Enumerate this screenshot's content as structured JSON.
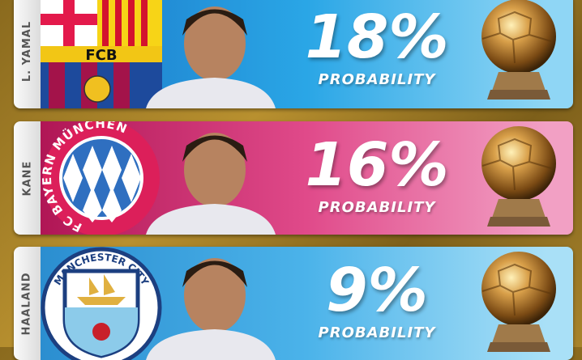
{
  "rows": [
    {
      "name": "L. YAMAL",
      "club": "FCB",
      "percent": "18%",
      "label": "PROBABILITY",
      "crest_icon": "fc-barcelona-crest",
      "color": "#1b78c8"
    },
    {
      "name": "KANE",
      "club": "FC BAYERN MÜNCHEN",
      "percent": "16%",
      "label": "PROBABILITY",
      "crest_icon": "fc-bayern-crest",
      "color": "#c81e62"
    },
    {
      "name": "HAALAND",
      "club": "MANCHESTER CITY",
      "percent": "9%",
      "label": "PROBABILITY",
      "crest_icon": "manchester-city-crest",
      "color": "#2b8ed0"
    }
  ],
  "trophy_icon": "ballon-dor-trophy-icon"
}
